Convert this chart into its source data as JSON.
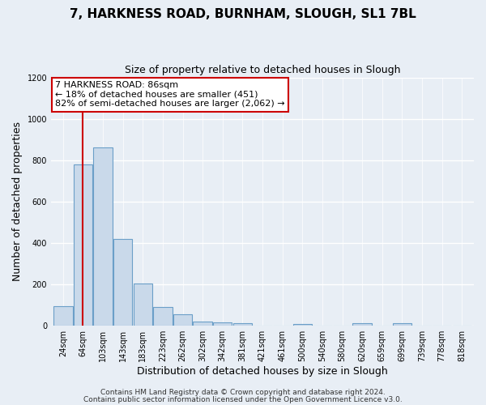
{
  "title": "7, HARKNESS ROAD, BURNHAM, SLOUGH, SL1 7BL",
  "subtitle": "Size of property relative to detached houses in Slough",
  "xlabel": "Distribution of detached houses by size in Slough",
  "ylabel": "Number of detached properties",
  "bar_labels": [
    "24sqm",
    "64sqm",
    "103sqm",
    "143sqm",
    "183sqm",
    "223sqm",
    "262sqm",
    "302sqm",
    "342sqm",
    "381sqm",
    "421sqm",
    "461sqm",
    "500sqm",
    "540sqm",
    "580sqm",
    "620sqm",
    "659sqm",
    "699sqm",
    "739sqm",
    "778sqm",
    "818sqm"
  ],
  "bar_values": [
    95,
    780,
    860,
    420,
    205,
    90,
    55,
    20,
    18,
    14,
    0,
    0,
    10,
    0,
    0,
    12,
    0,
    12,
    0,
    0,
    0
  ],
  "bar_color": "#c9d9ea",
  "bar_edge_color": "#6b9fc8",
  "vline_x": 1.0,
  "vline_color": "#cc0000",
  "annotation_text": "7 HARKNESS ROAD: 86sqm\n← 18% of detached houses are smaller (451)\n82% of semi-detached houses are larger (2,062) →",
  "annotation_box_color": "#ffffff",
  "annotation_box_edge": "#cc0000",
  "ylim": [
    0,
    1200
  ],
  "yticks": [
    0,
    200,
    400,
    600,
    800,
    1000,
    1200
  ],
  "footer_line1": "Contains HM Land Registry data © Crown copyright and database right 2024.",
  "footer_line2": "Contains public sector information licensed under the Open Government Licence v3.0.",
  "background_color": "#e8eef5",
  "plot_background": "#e8eef5",
  "grid_color": "#ffffff",
  "title_fontsize": 11,
  "subtitle_fontsize": 9,
  "axis_label_fontsize": 9,
  "tick_fontsize": 7,
  "footer_fontsize": 6.5,
  "annotation_fontsize": 8
}
